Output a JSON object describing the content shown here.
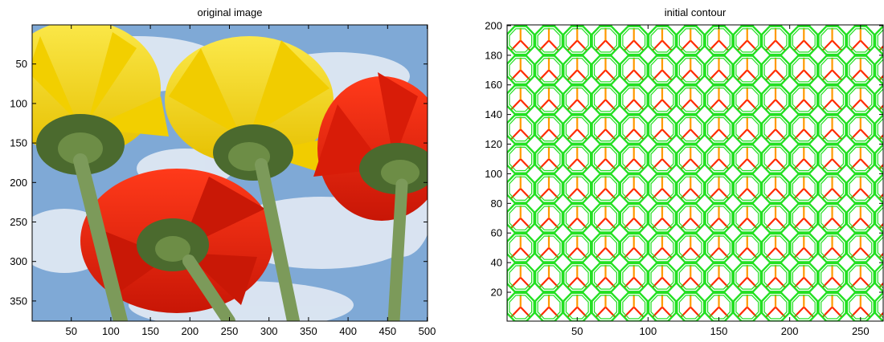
{
  "chart_data": [
    {
      "type": "image",
      "title": "original image",
      "xlim": [
        0.5,
        500.5
      ],
      "ylim": [
        0.5,
        375.5
      ],
      "y_direction": "reverse",
      "xticks": [
        50,
        100,
        150,
        200,
        250,
        300,
        350,
        400,
        450,
        500
      ],
      "yticks": [
        50,
        100,
        150,
        200,
        250,
        300,
        350
      ],
      "colors": {
        "sky": "#7fa9d6",
        "cloud": "#e9eef6",
        "yellow": "#f5d90a",
        "red": "#e0200c",
        "green": "#4b6a2e"
      }
    },
    {
      "type": "contour",
      "title": "initial contour",
      "xlim": [
        0.5,
        266
      ],
      "ylim": [
        0.5,
        200.5
      ],
      "y_direction": "normal",
      "xticks": [
        50,
        100,
        150,
        200,
        250
      ],
      "yticks": [
        20,
        40,
        60,
        80,
        100,
        120,
        140,
        160,
        180,
        200
      ],
      "cell": 20,
      "colors": {
        "contour": "#22e022",
        "inner": "#ff2a00",
        "inner_alt": "#ff9900"
      }
    }
  ]
}
